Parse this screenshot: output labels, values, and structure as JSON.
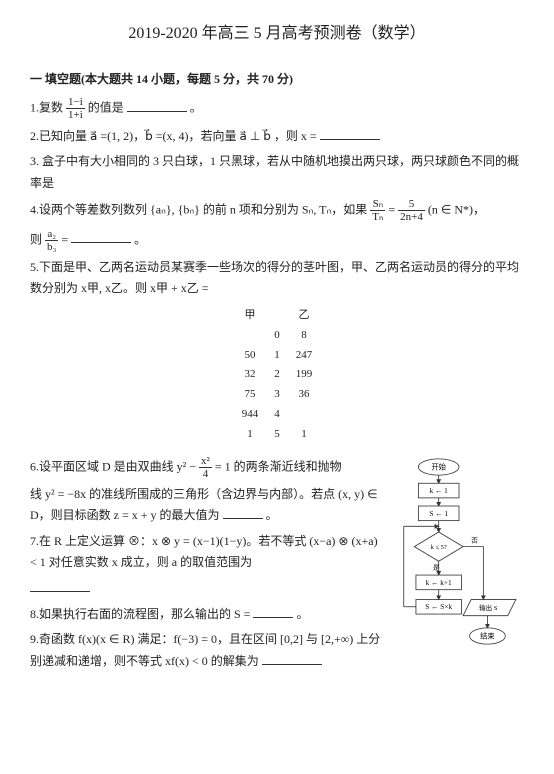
{
  "title": "2019-2020 年高三 5 月高考预测卷（数学）",
  "section": "一 填空题(本大题共 14 小题，每题 5 分，共 70 分)",
  "q1_a": "1.复数 ",
  "q1_num": "1−i",
  "q1_den": "1+i",
  "q1_b": " 的值是",
  "q1_c": "。",
  "q2": "2.已知向量 a⃗ =(1, 2)，b⃗ =(x, 4)，若向量 a⃗ ⊥ b⃗ ，则 x =",
  "q3": "3. 盒子中有大小相同的 3 只白球，1 只黑球，若从中随机地摸出两只球，两只球颜色不同的概率是",
  "q4_a": "4.设两个等差数列数列 {aₙ}, {bₙ} 的前 n 项和分别为 Sₙ, Tₙ，如果 ",
  "q4_frac1_num": "Sₙ",
  "q4_frac1_den": "Tₙ",
  "q4_eq": " = ",
  "q4_frac2_num": "5",
  "q4_frac2_den": "2n+4",
  "q4_b": " (n ∈ N*)，",
  "q4_c": "则 ",
  "q4_frac3_num": "a₂",
  "q4_frac3_den": "b₃",
  "q4_d": " =",
  "q4_e": "。",
  "q5a": "5.下面是甲、乙两名运动员某赛季一些场次的得分的茎叶图，甲、乙两名运动员的得分的平均数分别为 x甲, x乙。则 x甲 + x乙 =",
  "stem_header_l": "甲",
  "stem_header_r": "乙",
  "stem": [
    [
      "",
      "0",
      "8"
    ],
    [
      "50",
      "1",
      "247"
    ],
    [
      "32",
      "2",
      "199"
    ],
    [
      "75",
      "3",
      "36"
    ],
    [
      "944",
      "4",
      ""
    ],
    [
      "1",
      "5",
      "1"
    ]
  ],
  "q6_a": "6.设平面区域 D 是由双曲线 y² − ",
  "q6_num": "x²",
  "q6_den": "4",
  "q6_b": " = 1 的两条渐近线和抛物",
  "q6_c": "线 y² = −8x 的准线所围成的三角形（含边界与内部）。若点 (x, y) ∈ D，则目标函数 z = x + y 的最大值为",
  "q6_d": "。",
  "q7_a": "7.在 R 上定义运算 ⊗：x ⊗ y = (x−1)(1−y)。若不等式 (x−a) ⊗ (x+a) < 1 对任意实数 x 成立，则 a 的取值范围为",
  "q8": "8.如果执行右面的流程图，那么输出的 S =",
  "q8_b": "。",
  "q9": "9.奇函数 f(x)(x ∈ R) 满足：f(−3) = 0，且在区间 [0,2] 与 [2,+∞) 上分别递减和递增，则不等式 xf(x) < 0 的解集为",
  "flow": {
    "start": "开始",
    "s1": "k ← 1",
    "s2": "S ← 1",
    "cond": "k ≤ 5?",
    "yes": "是",
    "no": "否",
    "s3": "k ← k+1",
    "s4": "S ← S×k",
    "out": "输出 S",
    "end": "结束"
  }
}
